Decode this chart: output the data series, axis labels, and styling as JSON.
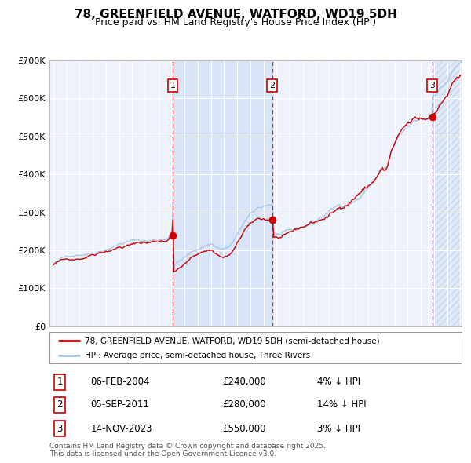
{
  "title": "78, GREENFIELD AVENUE, WATFORD, WD19 5DH",
  "subtitle": "Price paid vs. HM Land Registry's House Price Index (HPI)",
  "title_fontsize": 11,
  "subtitle_fontsize": 9,
  "x_start_year": 1995,
  "x_end_year": 2026,
  "y_min": 0,
  "y_max": 700000,
  "y_ticks": [
    0,
    100000,
    200000,
    300000,
    400000,
    500000,
    600000,
    700000
  ],
  "y_tick_labels": [
    "£0",
    "£100K",
    "£200K",
    "£300K",
    "£400K",
    "£500K",
    "£600K",
    "£700K"
  ],
  "hpi_color": "#a8c8e8",
  "price_color": "#cc0000",
  "sale1_date": 2004.09,
  "sale1_price": 240000,
  "sale2_date": 2011.67,
  "sale2_price": 280000,
  "sale3_date": 2023.87,
  "sale3_price": 550000,
  "legend_price_label": "78, GREENFIELD AVENUE, WATFORD, WD19 5DH (semi-detached house)",
  "legend_hpi_label": "HPI: Average price, semi-detached house, Three Rivers",
  "table_entries": [
    {
      "num": "1",
      "date": "06-FEB-2004",
      "price": "£240,000",
      "pct": "4% ↓ HPI"
    },
    {
      "num": "2",
      "date": "05-SEP-2011",
      "price": "£280,000",
      "pct": "14% ↓ HPI"
    },
    {
      "num": "3",
      "date": "14-NOV-2023",
      "price": "£550,000",
      "pct": "3% ↓ HPI"
    }
  ],
  "footnote": "Contains HM Land Registry data © Crown copyright and database right 2025.\nThis data is licensed under the Open Government Licence v3.0.",
  "bg_color": "#ffffff",
  "plot_bg_color": "#eef2fb",
  "grid_color": "#ffffff"
}
